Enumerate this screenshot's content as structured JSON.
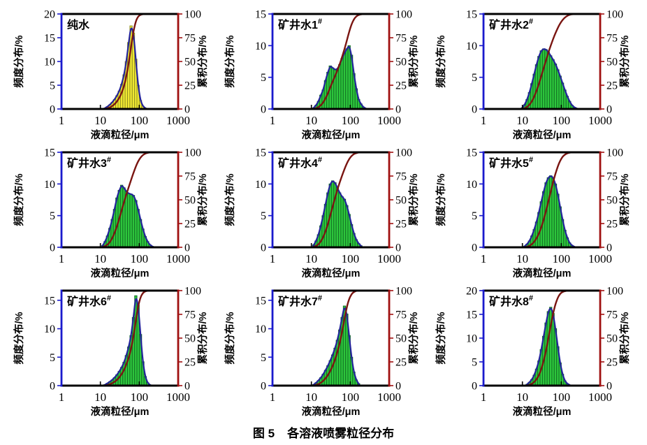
{
  "figure": {
    "caption_prefix": "图 5",
    "caption_text": "各溶液喷雾粒径分布"
  },
  "axes_common": {
    "x_label": "液滴粒径/μm",
    "y_left_label": "频度分布/%",
    "y_right_label": "累积分布/%",
    "x_scale": "log",
    "x_range_um": [
      1,
      1000
    ],
    "x_ticks": [
      "1",
      "10",
      "100",
      "1000"
    ],
    "right_ticks": [
      0,
      25,
      50,
      75,
      100
    ],
    "right_range": [
      0,
      100
    ],
    "bins_x_um": [
      10,
      11.5,
      13.2,
      15.2,
      17.5,
      20.1,
      23.1,
      26.6,
      30.6,
      35.2,
      40.5,
      46.5,
      53.5,
      61.5,
      70.8,
      81.4,
      93.6,
      107.6,
      123.8,
      142.4,
      163.7,
      188.3,
      216.5,
      249
    ],
    "colors": {
      "left_spine": "#1a1acd",
      "right_spine": "#a01212",
      "frame": "#000000",
      "envelope": "#23239a",
      "cumulative": "#7a1511",
      "green_fill": "#2dc53c",
      "green_edge": "#116b22",
      "yellow_fill": "#f0e832",
      "yellow_edge": "#8a8a20"
    },
    "grid": "off",
    "legend": "none"
  },
  "chart_data": [
    {
      "type": "bar+line",
      "label": "纯水",
      "label_sup": "",
      "fill": "yellow",
      "ylim": [
        0,
        20
      ],
      "yticks": [
        0,
        5,
        10,
        15,
        20
      ],
      "freq_pct": [
        0,
        0,
        0.2,
        0.5,
        0.9,
        1.4,
        2.0,
        2.8,
        3.8,
        5.2,
        7.2,
        10.0,
        14.0,
        17.5,
        16.0,
        10.5,
        5.0,
        1.8,
        0.6,
        0.2,
        0,
        0,
        0,
        0
      ],
      "cum_pct": [
        0,
        0,
        0.2,
        0.7,
        1.6,
        3.0,
        5.0,
        7.8,
        11.7,
        16.9,
        24.1,
        34.1,
        48.2,
        65.8,
        81.8,
        92.4,
        97.4,
        99.2,
        99.8,
        100,
        100,
        100,
        100,
        100
      ]
    },
    {
      "type": "bar+line",
      "label": "矿井水1",
      "label_sup": "#",
      "fill": "green",
      "ylim": [
        0,
        15
      ],
      "yticks": [
        0,
        5,
        10,
        15
      ],
      "freq_pct": [
        0,
        0.2,
        0.6,
        1.2,
        2.2,
        3.0,
        4.5,
        5.8,
        6.8,
        6.5,
        6.2,
        6.3,
        7.0,
        8.0,
        8.8,
        9.5,
        10.0,
        8.5,
        5.6,
        3.2,
        1.5,
        0.8,
        0.3,
        0.1
      ],
      "cum_pct": [
        0,
        0.2,
        0.8,
        1.9,
        3.9,
        6.8,
        11.0,
        16.4,
        22.8,
        28.9,
        34.7,
        40.6,
        47.2,
        54.7,
        62.9,
        71.9,
        81.2,
        89.2,
        94.5,
        97.5,
        98.9,
        99.6,
        99.9,
        100
      ]
    },
    {
      "type": "bar+line",
      "label": "矿井水2",
      "label_sup": "#",
      "fill": "green",
      "ylim": [
        0,
        15
      ],
      "yticks": [
        0,
        5,
        10,
        15
      ],
      "freq_pct": [
        0.2,
        0.7,
        1.5,
        2.6,
        4.0,
        5.5,
        7.0,
        8.3,
        9.2,
        9.5,
        9.4,
        9.0,
        8.4,
        7.8,
        7.1,
        6.2,
        5.2,
        4.1,
        3.0,
        2.0,
        1.2,
        0.6,
        0.25,
        0.1
      ],
      "cum_pct": [
        0.2,
        0.8,
        2.1,
        4.4,
        8.0,
        12.8,
        19.1,
        26.4,
        34.6,
        43.0,
        51.3,
        59.3,
        66.7,
        73.6,
        79.9,
        85.4,
        90.0,
        93.7,
        96.3,
        98.1,
        99.2,
        99.7,
        99.9,
        100
      ]
    },
    {
      "type": "bar+line",
      "label": "矿井水3",
      "label_sup": "#",
      "fill": "green",
      "ylim": [
        0,
        15
      ],
      "yticks": [
        0,
        5,
        10,
        15
      ],
      "freq_pct": [
        0,
        0.3,
        0.9,
        1.8,
        3.0,
        4.4,
        6.0,
        7.8,
        9.0,
        9.8,
        9.4,
        8.8,
        8.5,
        8.4,
        8.2,
        7.4,
        6.0,
        4.4,
        2.9,
        1.7,
        0.9,
        0.4,
        0.15,
        0
      ],
      "cum_pct": [
        0,
        0.3,
        1.1,
        2.7,
        5.4,
        9.4,
        14.9,
        22.0,
        30.1,
        39.0,
        47.6,
        55.6,
        63.3,
        70.9,
        78.3,
        85.1,
        90.5,
        94.5,
        97.1,
        98.7,
        99.5,
        99.9,
        100,
        100
      ]
    },
    {
      "type": "bar+line",
      "label": "矿井水4",
      "label_sup": "#",
      "fill": "green",
      "ylim": [
        0,
        15
      ],
      "yticks": [
        0,
        5,
        10,
        15
      ],
      "freq_pct": [
        0,
        0.4,
        1.0,
        2.0,
        3.4,
        5.0,
        6.8,
        8.6,
        10.0,
        10.5,
        10.2,
        9.4,
        8.6,
        8.0,
        7.6,
        6.6,
        5.2,
        3.6,
        2.2,
        1.2,
        0.6,
        0.25,
        0,
        0
      ],
      "cum_pct": [
        0,
        0.4,
        1.3,
        3.1,
        6.1,
        10.6,
        16.7,
        24.5,
        33.5,
        42.9,
        52.1,
        60.5,
        68.3,
        75.5,
        82.3,
        88.3,
        92.9,
        96.2,
        98.2,
        99.2,
        99.8,
        100,
        100,
        100
      ]
    },
    {
      "type": "bar+line",
      "label": "矿井水5",
      "label_sup": "#",
      "fill": "green",
      "ylim": [
        0,
        15
      ],
      "yticks": [
        0,
        5,
        10,
        15
      ],
      "freq_pct": [
        0,
        0.2,
        0.5,
        1.0,
        1.8,
        2.8,
        4.0,
        5.5,
        7.2,
        8.8,
        10.2,
        11.0,
        11.3,
        11.0,
        10.0,
        8.4,
        6.4,
        4.4,
        2.7,
        1.5,
        0.7,
        0.3,
        0.1,
        0
      ],
      "cum_pct": [
        0,
        0.2,
        0.6,
        1.5,
        3.2,
        5.7,
        9.4,
        14.4,
        20.9,
        29.0,
        38.3,
        48.3,
        58.6,
        68.6,
        77.7,
        85.3,
        91.2,
        95.3,
        97.6,
        99.0,
        99.6,
        99.9,
        100,
        100
      ]
    },
    {
      "type": "bar+line",
      "label": "矿井水6",
      "label_sup": "#",
      "fill": "green",
      "ylim": [
        0,
        16.7
      ],
      "yticks": [
        0,
        5,
        10,
        15
      ],
      "freq_pct": [
        0,
        0,
        0.2,
        0.4,
        0.7,
        1.0,
        1.4,
        1.9,
        2.5,
        3.2,
        4.1,
        5.3,
        6.8,
        8.8,
        12.0,
        15.8,
        14.2,
        9.0,
        4.2,
        1.6,
        0.5,
        0.15,
        0,
        0
      ],
      "cum_pct": [
        0,
        0,
        0.2,
        0.6,
        1.4,
        2.5,
        3.9,
        6.0,
        8.6,
        12.1,
        16.4,
        22.1,
        29.3,
        38.7,
        51.5,
        68.4,
        83.5,
        93.1,
        97.6,
        99.3,
        99.8,
        100,
        100,
        100
      ]
    },
    {
      "type": "bar+line",
      "label": "矿井水7",
      "label_sup": "#",
      "fill": "green",
      "ylim": [
        0,
        16.7
      ],
      "yticks": [
        0,
        5,
        10,
        15
      ],
      "freq_pct": [
        0,
        0.2,
        0.5,
        0.9,
        1.4,
        2.0,
        2.7,
        3.5,
        4.4,
        5.4,
        6.6,
        8.0,
        9.8,
        12.0,
        14.0,
        12.6,
        8.8,
        5.0,
        2.4,
        1.0,
        0.35,
        0,
        0,
        0
      ],
      "cum_pct": [
        0,
        0.2,
        0.7,
        1.6,
        3.0,
        4.9,
        7.6,
        11.0,
        15.4,
        20.7,
        27.2,
        35.1,
        44.7,
        56.5,
        70.3,
        82.7,
        91.4,
        96.3,
        98.7,
        99.7,
        100,
        100,
        100,
        100
      ]
    },
    {
      "type": "bar+line",
      "label": "矿井水8",
      "label_sup": "#",
      "fill": "green",
      "ylim": [
        0,
        20
      ],
      "yticks": [
        0,
        5,
        10,
        15,
        20
      ],
      "freq_pct": [
        0,
        0,
        0.3,
        0.7,
        1.3,
        2.2,
        3.5,
        5.2,
        7.6,
        10.4,
        13.2,
        15.6,
        16.5,
        15.2,
        12.0,
        8.2,
        4.8,
        2.4,
        1.0,
        0.4,
        0.15,
        0,
        0,
        0
      ],
      "cum_pct": [
        0,
        0,
        0.2,
        0.8,
        1.9,
        3.7,
        6.6,
        10.9,
        17.2,
        25.9,
        36.8,
        49.7,
        63.4,
        76.0,
        85.9,
        92.7,
        96.7,
        98.7,
        99.5,
        99.9,
        100,
        100,
        100,
        100
      ]
    }
  ]
}
